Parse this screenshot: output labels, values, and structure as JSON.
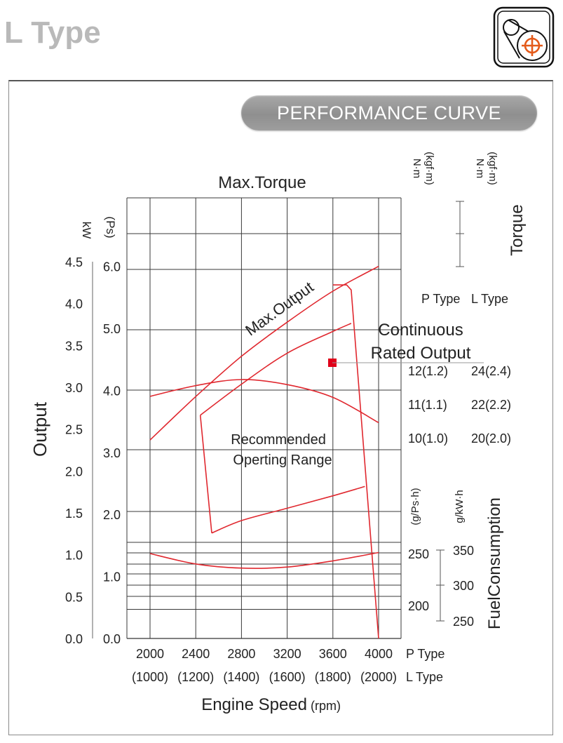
{
  "page": {
    "title": "L Type",
    "banner": "PERFORMANCE CURVE",
    "logo_icon": "pulley-crosshair-icon"
  },
  "colors": {
    "curve": "#e0282f",
    "grid": "#3a3a3a",
    "marker": "#e0001a",
    "title_gray": "#b9b9b9",
    "banner_gray": "#9a9a9a"
  },
  "chart_data": {
    "type": "line",
    "title": "",
    "xlabel": "Engine Speed",
    "xlabel_unit": "(rpm)",
    "x": [
      2000,
      2400,
      2800,
      3200,
      3600,
      4000
    ],
    "x_tick_labels_p": [
      "2000",
      "2400",
      "2800",
      "3200",
      "3600",
      "4000"
    ],
    "x_tick_labels_l": [
      "(1000)",
      "(1200)",
      "(1400)",
      "(1600)",
      "(1800)",
      "(2000)"
    ],
    "x_row_label_p": "P Type",
    "x_row_label_l": "L Type",
    "xlim": [
      2000,
      4000
    ],
    "output_axis": {
      "ylabel": "Output",
      "kw_unit": "kW",
      "ps_unit": "(Ps)",
      "kw_ticks": [
        "0.0",
        "0.5",
        "1.0",
        "1.5",
        "2.0",
        "2.5",
        "3.0",
        "3.5",
        "4.0",
        "4.5"
      ],
      "ps_ticks": [
        "0.0",
        "1.0",
        "2.0",
        "3.0",
        "4.0",
        "5.0",
        "6.0"
      ],
      "ylim_kw": [
        0,
        4.5
      ]
    },
    "torque_axis": {
      "ylabel": "Torque",
      "unit_p": "N·m\n(kgf·m)",
      "unit_l": "N·m\n(kgf·m)",
      "p_ticks": [
        "12(1.2)",
        "11(1.1)",
        "10(1.0)"
      ],
      "l_ticks": [
        "24(2.4)",
        "22(2.2)",
        "20(2.0)"
      ],
      "p_label": "P Type",
      "l_label": "L Type"
    },
    "fuel_axis": {
      "ylabel": "FuelConsumption",
      "unit_p": "(g/Ps·h)",
      "unit_l": "g/kW·h",
      "p_ticks": [
        "250",
        "200"
      ],
      "l_ticks": [
        "350",
        "300",
        "250"
      ]
    },
    "series": [
      {
        "name": "Max.Torque",
        "axis": "torque_p_nm",
        "points": [
          [
            2000,
            11.23
          ],
          [
            2400,
            11.55
          ],
          [
            2800,
            11.73
          ],
          [
            3200,
            11.58
          ],
          [
            3600,
            11.2
          ],
          [
            4000,
            10.45
          ]
        ]
      },
      {
        "name": "Max.Output",
        "axis": "output_ps",
        "points": [
          [
            2000,
            3.2
          ],
          [
            2400,
            3.9
          ],
          [
            2800,
            4.55
          ],
          [
            3200,
            5.1
          ],
          [
            3600,
            5.6
          ],
          [
            4000,
            6.0
          ]
        ]
      },
      {
        "name": "Continuous Rated Output",
        "axis": "output_ps",
        "points": [
          [
            2440,
            3.6
          ],
          [
            2800,
            4.1
          ],
          [
            3200,
            4.6
          ],
          [
            3600,
            4.95
          ],
          [
            3760,
            5.08
          ]
        ]
      },
      {
        "name": "",
        "axis": "fuel_p",
        "points": [
          [
            2000,
            250
          ],
          [
            2400,
            240
          ],
          [
            2800,
            236
          ],
          [
            3200,
            237
          ],
          [
            3600,
            243
          ],
          [
            4000,
            251
          ]
        ]
      }
    ],
    "recommended_range": {
      "label_line1": "Recommended",
      "label_line2": "Operting Range",
      "polygon": [
        [
          2440,
          3.6
        ],
        [
          2540,
          1.7
        ],
        [
          2800,
          1.9
        ],
        [
          3200,
          2.1
        ],
        [
          3600,
          2.3
        ],
        [
          3880,
          2.45
        ]
      ]
    },
    "rated_point": {
      "label_line1": "Continuous",
      "label_line2": "Rated Output",
      "x": 3600,
      "y_ps": 4.6
    },
    "drop_line": [
      [
        3600,
        5.7
      ],
      [
        3720,
        5.7
      ],
      [
        3760,
        5.62
      ],
      [
        4000,
        0.0
      ]
    ],
    "annotations": {
      "max_torque": "Max.Torque",
      "max_output": "Max.Output"
    },
    "grid": true
  }
}
